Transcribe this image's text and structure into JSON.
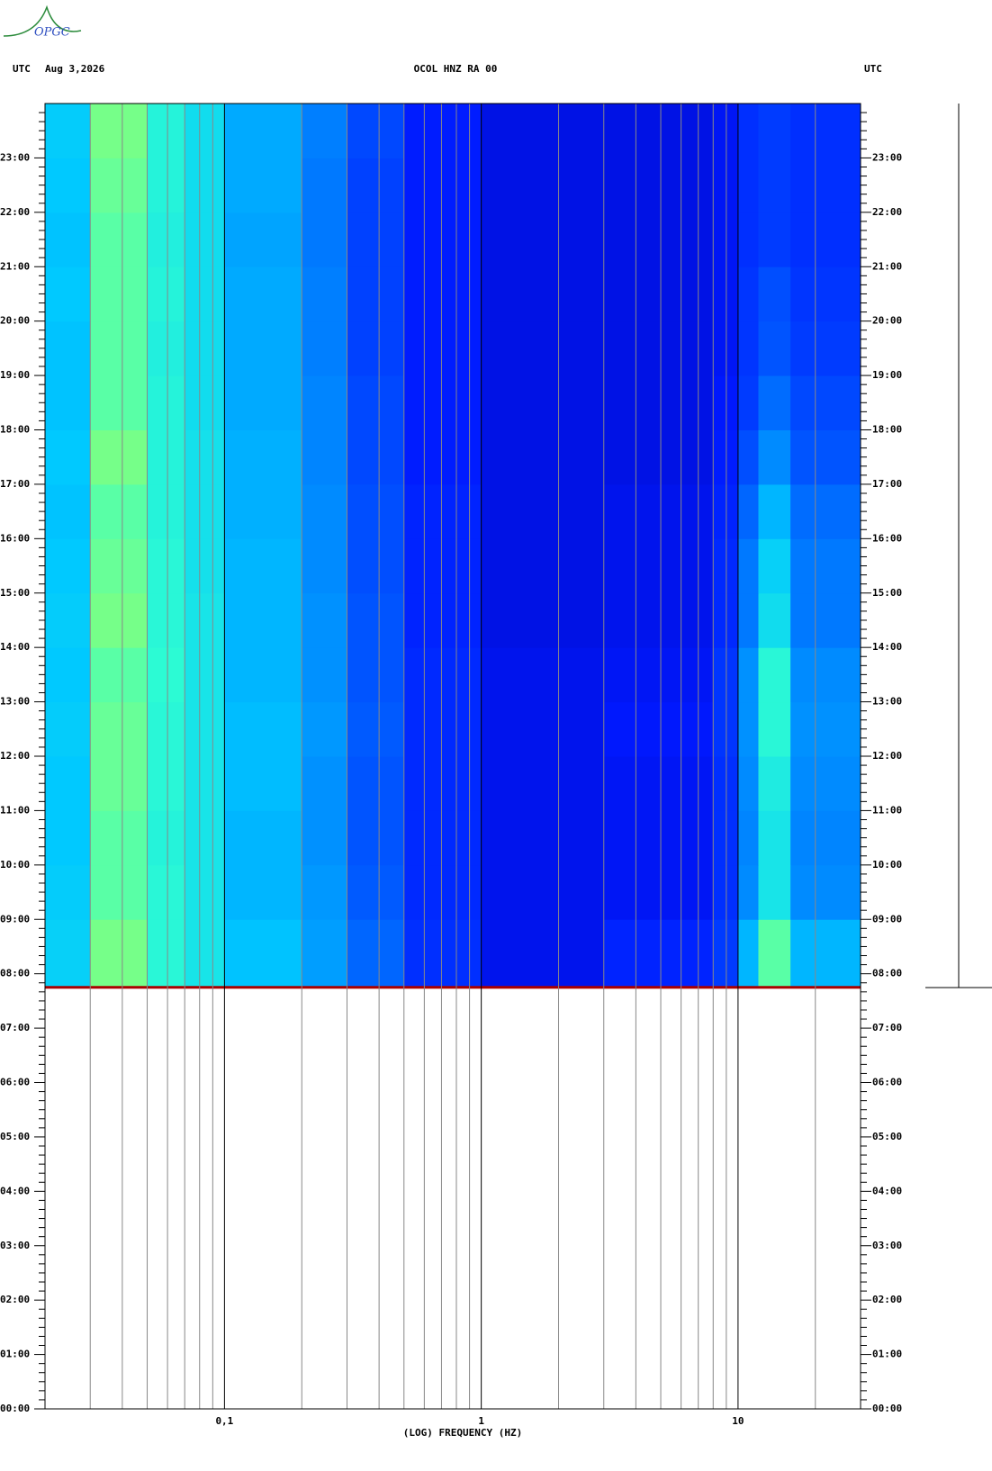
{
  "logo": "OPGC",
  "chart_data": {
    "type": "spectrogram",
    "title": "OCOL HNZ RA 00",
    "date": "Aug 3,2026",
    "timezone_left": "UTC",
    "timezone_right": "UTC",
    "xlabel": "(LOG) FREQUENCY (HZ)",
    "xscale": "log",
    "xlim": [
      0.02,
      30
    ],
    "xticks": [
      {
        "value": 0.1,
        "label": "0,1"
      },
      1,
      10
    ],
    "xgrid_minor": [
      0.03,
      0.04,
      0.05,
      0.06,
      0.07,
      0.08,
      0.09,
      0.2,
      0.3,
      0.4,
      0.5,
      0.6,
      0.7,
      0.8,
      0.9,
      2,
      3,
      4,
      5,
      6,
      7,
      8,
      9,
      20
    ],
    "ylim": [
      0,
      24
    ],
    "yticks": [
      {
        "value": 0,
        "label": "00:00"
      },
      {
        "value": 1,
        "label": "01:00"
      },
      {
        "value": 2,
        "label": "02:00"
      },
      {
        "value": 3,
        "label": "03:00"
      },
      {
        "value": 4,
        "label": "04:00"
      },
      {
        "value": 5,
        "label": "05:00"
      },
      {
        "value": 6,
        "label": "06:00"
      },
      {
        "value": 7,
        "label": "07:00"
      },
      {
        "value": 8,
        "label": "08:00"
      },
      {
        "value": 9,
        "label": "09:00"
      },
      {
        "value": 10,
        "label": "10:00"
      },
      {
        "value": 11,
        "label": "11:00"
      },
      {
        "value": 12,
        "label": "12:00"
      },
      {
        "value": 13,
        "label": "13:00"
      },
      {
        "value": 14,
        "label": "14:00"
      },
      {
        "value": 15,
        "label": "15:00"
      },
      {
        "value": 16,
        "label": "16:00"
      },
      {
        "value": 17,
        "label": "17:00"
      },
      {
        "value": 18,
        "label": "18:00"
      },
      {
        "value": 19,
        "label": "19:00"
      },
      {
        "value": 20,
        "label": "20:00"
      },
      {
        "value": 21,
        "label": "21:00"
      },
      {
        "value": 22,
        "label": "22:00"
      },
      {
        "value": 23,
        "label": "23:00"
      }
    ],
    "colormap": [
      "#00008c",
      "#0018ff",
      "#0070ff",
      "#00c8ff",
      "#30ffd0",
      "#ffff00",
      "#ff6000",
      "#c00000"
    ],
    "end_line_color": "#aa0000",
    "freq_edges": [
      0.02,
      0.03,
      0.05,
      0.07,
      0.1,
      0.2,
      0.3,
      0.5,
      1,
      3,
      8,
      10,
      12,
      16,
      30
    ],
    "time_edges": [
      7.75,
      9,
      10,
      11,
      12,
      13,
      14,
      15,
      16,
      17,
      18,
      19,
      20,
      21,
      22,
      23,
      24
    ],
    "intensity": [
      [
        0.45,
        0.62,
        0.55,
        0.5,
        0.42,
        0.36,
        0.27,
        0.18,
        0.12,
        0.16,
        0.2,
        0.4,
        0.6,
        0.4
      ],
      [
        0.44,
        0.6,
        0.55,
        0.5,
        0.4,
        0.35,
        0.25,
        0.17,
        0.12,
        0.13,
        0.18,
        0.33,
        0.5,
        0.33
      ],
      [
        0.43,
        0.6,
        0.54,
        0.5,
        0.4,
        0.34,
        0.24,
        0.17,
        0.12,
        0.13,
        0.18,
        0.32,
        0.5,
        0.32
      ],
      [
        0.43,
        0.61,
        0.55,
        0.5,
        0.41,
        0.34,
        0.24,
        0.17,
        0.12,
        0.13,
        0.18,
        0.33,
        0.52,
        0.33
      ],
      [
        0.44,
        0.61,
        0.55,
        0.5,
        0.41,
        0.35,
        0.25,
        0.17,
        0.12,
        0.14,
        0.19,
        0.34,
        0.55,
        0.34
      ],
      [
        0.43,
        0.6,
        0.56,
        0.5,
        0.4,
        0.34,
        0.24,
        0.17,
        0.12,
        0.13,
        0.19,
        0.34,
        0.55,
        0.33
      ],
      [
        0.44,
        0.62,
        0.55,
        0.5,
        0.4,
        0.34,
        0.24,
        0.16,
        0.11,
        0.12,
        0.17,
        0.3,
        0.48,
        0.3
      ],
      [
        0.43,
        0.61,
        0.55,
        0.49,
        0.4,
        0.33,
        0.23,
        0.16,
        0.11,
        0.12,
        0.17,
        0.3,
        0.45,
        0.3
      ],
      [
        0.42,
        0.6,
        0.54,
        0.49,
        0.39,
        0.33,
        0.23,
        0.16,
        0.11,
        0.12,
        0.16,
        0.27,
        0.4,
        0.28
      ],
      [
        0.43,
        0.62,
        0.54,
        0.49,
        0.39,
        0.32,
        0.22,
        0.15,
        0.11,
        0.11,
        0.15,
        0.23,
        0.33,
        0.24
      ],
      [
        0.42,
        0.6,
        0.54,
        0.48,
        0.38,
        0.32,
        0.22,
        0.15,
        0.11,
        0.11,
        0.14,
        0.2,
        0.28,
        0.22
      ],
      [
        0.42,
        0.6,
        0.53,
        0.48,
        0.38,
        0.31,
        0.21,
        0.15,
        0.11,
        0.11,
        0.13,
        0.19,
        0.24,
        0.2
      ],
      [
        0.43,
        0.6,
        0.54,
        0.48,
        0.38,
        0.31,
        0.21,
        0.15,
        0.11,
        0.11,
        0.13,
        0.19,
        0.23,
        0.19
      ],
      [
        0.42,
        0.6,
        0.53,
        0.48,
        0.37,
        0.3,
        0.21,
        0.15,
        0.11,
        0.11,
        0.13,
        0.18,
        0.2,
        0.18
      ],
      [
        0.43,
        0.61,
        0.54,
        0.48,
        0.38,
        0.3,
        0.21,
        0.15,
        0.11,
        0.11,
        0.13,
        0.18,
        0.2,
        0.18
      ],
      [
        0.44,
        0.62,
        0.54,
        0.48,
        0.38,
        0.31,
        0.22,
        0.15,
        0.11,
        0.11,
        0.13,
        0.18,
        0.2,
        0.18
      ]
    ]
  }
}
